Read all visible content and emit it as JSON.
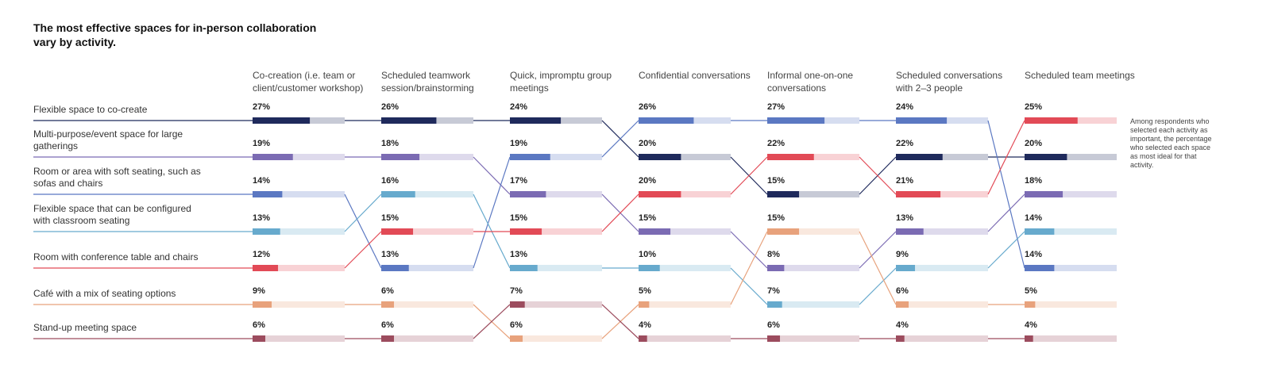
{
  "chart_data": {
    "type": "bump",
    "title": "The most effective spaces for in-person collaboration vary by activity.",
    "note": "Among respondents who selected each activity as important, the percentage who selected each space as most ideal for that activity.",
    "categories": [
      "Co-creation (i.e. team or client/customer workshop)",
      "Scheduled teamwork session/brainstorming",
      "Quick, impromptu group meetings",
      "Confidential conversations",
      "Informal one-on-one conversations",
      "Scheduled conversations with 2–3 people",
      "Scheduled team meetings"
    ],
    "series": [
      {
        "name": "Flexible space to co-create",
        "color": "#1f2a5c",
        "values": [
          27,
          26,
          24,
          20,
          15,
          22,
          20
        ],
        "value_labels": [
          "27%",
          "26%",
          "24%",
          "20%",
          "15%",
          "22%",
          "20%"
        ],
        "ranks": [
          1,
          1,
          1,
          2,
          3,
          2,
          2
        ]
      },
      {
        "name": "Multi-purpose/event space for large gatherings",
        "color": "#7b6bb3",
        "values": [
          19,
          18,
          17,
          15,
          8,
          13,
          18
        ],
        "value_labels": [
          "19%",
          "18%",
          "17%",
          "15%",
          "8%",
          "13%",
          "18%"
        ],
        "ranks": [
          2,
          2,
          3,
          4,
          5,
          4,
          3
        ]
      },
      {
        "name": "Room or area with soft seating, such as sofas and chairs",
        "color": "#5b78c2",
        "values": [
          14,
          13,
          19,
          26,
          27,
          24,
          14
        ],
        "value_labels": [
          "14%",
          "13%",
          "19%",
          "26%",
          "27%",
          "24%",
          "14%"
        ],
        "ranks": [
          3,
          5,
          2,
          1,
          1,
          1,
          5
        ]
      },
      {
        "name": "Flexible space that can be configured with classroom seating",
        "color": "#67aacd",
        "values": [
          13,
          16,
          13,
          10,
          7,
          9,
          14
        ],
        "value_labels": [
          "13%",
          "16%",
          "13%",
          "10%",
          "7%",
          "9%",
          "14%"
        ],
        "ranks": [
          4,
          3,
          5,
          5,
          6,
          5,
          4
        ]
      },
      {
        "name": "Room with conference table and chairs",
        "color": "#e24a56",
        "values": [
          12,
          15,
          15,
          20,
          22,
          21,
          25
        ],
        "value_labels": [
          "12%",
          "15%",
          "15%",
          "20%",
          "22%",
          "21%",
          "25%"
        ],
        "ranks": [
          5,
          4,
          4,
          3,
          2,
          3,
          1
        ]
      },
      {
        "name": "Café with a mix of seating options",
        "color": "#e8a27c",
        "values": [
          9,
          6,
          6,
          5,
          15,
          6,
          5
        ],
        "value_labels": [
          "9%",
          "6%",
          "6%",
          "5%",
          "15%",
          "6%",
          "5%"
        ],
        "ranks": [
          6,
          6,
          7,
          6,
          4,
          6,
          6
        ]
      },
      {
        "name": "Stand-up meeting space",
        "color": "#9c4c5e",
        "values": [
          6,
          6,
          7,
          4,
          6,
          4,
          4
        ],
        "value_labels": [
          "6%",
          "6%",
          "7%",
          "4%",
          "6%",
          "4%",
          "4%"
        ],
        "ranks": [
          7,
          7,
          6,
          7,
          7,
          7,
          7
        ]
      }
    ]
  }
}
